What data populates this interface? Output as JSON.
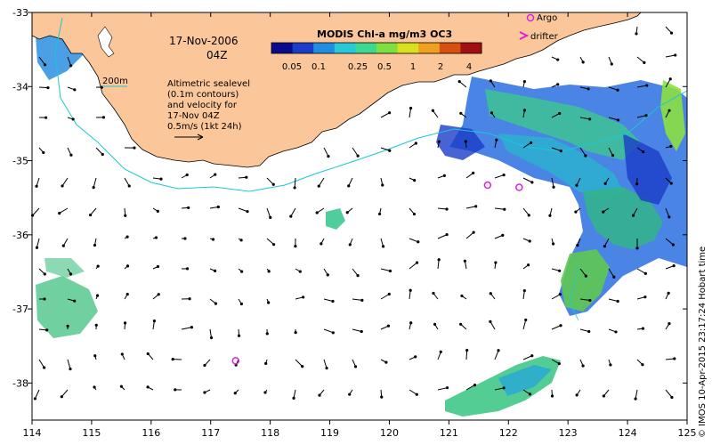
{
  "map": {
    "date": "17-Nov-2006",
    "time": "04Z",
    "isobath_label": "200m",
    "annotation_lines": [
      "Altimetric sealevel",
      "(0.1m contours)",
      "and velocity for",
      "17-Nov 04Z",
      "0.5m/s (1kt 24h)"
    ],
    "colorbar": {
      "title": "MODIS Chl-a mg/m3 OC3",
      "ticks": [
        "0.05",
        "0.1",
        "0.25",
        "0.5",
        "1",
        "2",
        "4"
      ],
      "colors": [
        "#0a0a8c",
        "#1a3cc8",
        "#1f8de0",
        "#28c8d8",
        "#3cd890",
        "#7ee040",
        "#d8e020",
        "#f0a020",
        "#d85010",
        "#a01010"
      ]
    },
    "legend": {
      "argo_label": "Argo",
      "drifter_label": "drifter"
    },
    "credit": "© IMOS 10-Apr-2015 23:17:24 Hobart time",
    "x_ticks": [
      "114",
      "115",
      "116",
      "117",
      "118",
      "119",
      "120",
      "121",
      "122",
      "123",
      "124",
      "125"
    ],
    "y_ticks": [
      "-33",
      "-34",
      "-35",
      "-36",
      "-37",
      "-38"
    ],
    "extent": {
      "lon_min": 114,
      "lon_max": 125,
      "lat_min": -38.5,
      "lat_max": -33
    },
    "land_color": "#fac69a",
    "isobath_color": "#19c8d8",
    "argo_color": "#e020e0",
    "argo_floats": [
      {
        "lon": 121.65,
        "lat": -35.33
      },
      {
        "lon": 122.18,
        "lat": -35.36
      },
      {
        "lon": 117.42,
        "lat": -37.7
      }
    ]
  }
}
